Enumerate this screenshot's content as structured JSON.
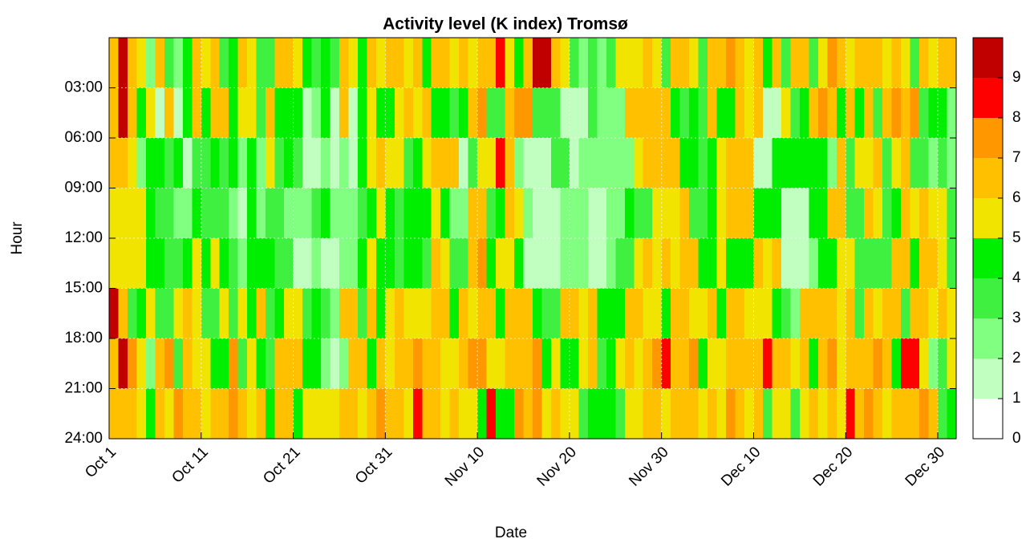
{
  "chart_data": {
    "type": "heatmap",
    "title": "Activity level (K index) Tromsø",
    "x_label": "Date",
    "y_label": "Hour",
    "xlim": [
      0,
      92
    ],
    "xticks": [
      {
        "value": 0,
        "label": "Oct 1"
      },
      {
        "value": 10,
        "label": "Oct 11"
      },
      {
        "value": 20,
        "label": "Oct 21"
      },
      {
        "value": 30,
        "label": "Oct 31"
      },
      {
        "value": 40,
        "label": "Nov 10"
      },
      {
        "value": 50,
        "label": "Nov 20"
      },
      {
        "value": 60,
        "label": "Nov 30"
      },
      {
        "value": 70,
        "label": "Dec 10"
      },
      {
        "value": 80,
        "label": "Dec 20"
      },
      {
        "value": 90,
        "label": "Dec 30"
      }
    ],
    "ylim": [
      0,
      24
    ],
    "yticks": [
      {
        "value": 3,
        "label": "03:00"
      },
      {
        "value": 6,
        "label": "06:00"
      },
      {
        "value": 9,
        "label": "09:00"
      },
      {
        "value": 12,
        "label": "12:00"
      },
      {
        "value": 15,
        "label": "15:00"
      },
      {
        "value": 18,
        "label": "18:00"
      },
      {
        "value": 21,
        "label": "21:00"
      },
      {
        "value": 24,
        "label": "24:00"
      }
    ],
    "zlim": [
      0,
      10
    ],
    "zticks": [
      0,
      1,
      2,
      3,
      4,
      5,
      6,
      7,
      8,
      9
    ],
    "colors": [
      "#ffffff",
      "#c0ffc0",
      "#80ff80",
      "#40f040",
      "#00ee00",
      "#f0e400",
      "#ffc000",
      "#ff9800",
      "#ff0000",
      "#c00000"
    ],
    "grid": true,
    "values": [
      [
        6,
        9,
        6,
        5,
        2,
        6,
        3,
        2,
        4,
        6,
        5,
        6,
        3,
        4,
        6,
        5,
        3,
        3,
        6,
        6,
        5,
        4,
        3,
        4,
        3,
        6,
        5,
        4,
        6,
        5,
        6,
        6,
        5,
        6,
        4,
        6,
        6,
        5,
        6,
        5,
        6,
        6,
        8,
        5,
        4,
        6,
        9,
        9,
        6,
        5,
        3,
        2,
        3,
        2,
        3,
        5,
        5,
        5,
        6,
        5,
        3,
        6,
        6,
        5,
        3,
        6,
        6,
        7,
        6,
        5,
        6,
        4,
        6,
        3,
        6,
        6,
        3,
        5,
        7,
        6,
        5,
        6,
        6,
        6,
        5,
        6,
        5,
        3,
        6,
        5,
        6,
        6
      ],
      [
        6,
        9,
        6,
        4,
        5,
        1,
        6,
        1,
        4,
        6,
        4,
        6,
        6,
        4,
        5,
        5,
        3,
        6,
        4,
        4,
        4,
        1,
        2,
        4,
        1,
        6,
        1,
        4,
        5,
        4,
        4,
        5,
        6,
        5,
        6,
        4,
        4,
        3,
        4,
        6,
        7,
        3,
        3,
        6,
        7,
        7,
        3,
        3,
        3,
        1,
        1,
        1,
        3,
        2,
        2,
        2,
        6,
        6,
        6,
        6,
        6,
        4,
        3,
        4,
        3,
        6,
        4,
        4,
        6,
        5,
        6,
        1,
        1,
        5,
        3,
        4,
        6,
        7,
        6,
        4,
        6,
        4,
        6,
        3,
        6,
        7,
        6,
        7,
        3,
        4,
        4,
        2
      ],
      [
        6,
        6,
        5,
        2,
        4,
        4,
        3,
        4,
        1,
        3,
        3,
        4,
        3,
        4,
        2,
        4,
        2,
        5,
        3,
        4,
        3,
        1,
        1,
        2,
        1,
        2,
        1,
        4,
        5,
        6,
        5,
        5,
        3,
        4,
        5,
        6,
        6,
        6,
        1,
        3,
        5,
        5,
        8,
        6,
        2,
        1,
        1,
        1,
        3,
        3,
        1,
        2,
        2,
        2,
        2,
        2,
        2,
        5,
        6,
        6,
        6,
        6,
        4,
        4,
        3,
        4,
        5,
        6,
        6,
        6,
        1,
        1,
        4,
        4,
        4,
        4,
        4,
        4,
        2,
        6,
        3,
        5,
        5,
        6,
        3,
        5,
        6,
        3,
        3,
        2,
        3,
        2
      ],
      [
        5,
        5,
        5,
        5,
        4,
        3,
        3,
        2,
        2,
        4,
        3,
        3,
        3,
        2,
        1,
        4,
        2,
        3,
        3,
        2,
        2,
        2,
        3,
        4,
        2,
        2,
        2,
        3,
        4,
        5,
        4,
        3,
        4,
        4,
        4,
        5,
        4,
        2,
        2,
        6,
        6,
        3,
        4,
        6,
        5,
        2,
        1,
        1,
        1,
        2,
        2,
        2,
        1,
        1,
        2,
        2,
        4,
        3,
        3,
        5,
        5,
        5,
        6,
        3,
        3,
        4,
        5,
        6,
        6,
        6,
        4,
        4,
        4,
        1,
        1,
        1,
        4,
        4,
        6,
        6,
        3,
        3,
        6,
        5,
        3,
        4,
        6,
        5,
        6,
        5,
        5,
        3
      ],
      [
        5,
        5,
        5,
        5,
        4,
        4,
        3,
        3,
        4,
        5,
        4,
        5,
        4,
        3,
        2,
        4,
        4,
        4,
        3,
        3,
        1,
        1,
        2,
        1,
        1,
        2,
        2,
        4,
        5,
        4,
        4,
        3,
        4,
        4,
        3,
        6,
        5,
        3,
        3,
        6,
        7,
        4,
        5,
        5,
        4,
        1,
        1,
        1,
        1,
        2,
        2,
        2,
        1,
        1,
        2,
        3,
        3,
        5,
        6,
        5,
        6,
        5,
        6,
        6,
        4,
        4,
        5,
        4,
        4,
        4,
        6,
        5,
        6,
        1,
        1,
        1,
        2,
        4,
        4,
        5,
        5,
        3,
        3,
        3,
        3,
        6,
        6,
        4,
        6,
        6,
        5,
        3
      ],
      [
        9,
        6,
        3,
        4,
        5,
        3,
        3,
        5,
        6,
        5,
        3,
        3,
        5,
        3,
        5,
        4,
        6,
        3,
        4,
        5,
        5,
        3,
        4,
        3,
        2,
        6,
        6,
        3,
        6,
        4,
        5,
        6,
        5,
        5,
        5,
        6,
        6,
        4,
        6,
        5,
        6,
        6,
        4,
        6,
        6,
        6,
        4,
        3,
        3,
        6,
        6,
        5,
        6,
        4,
        4,
        4,
        6,
        6,
        5,
        5,
        4,
        6,
        6,
        5,
        5,
        6,
        4,
        6,
        6,
        5,
        5,
        5,
        4,
        3,
        2,
        6,
        6,
        6,
        6,
        5,
        6,
        3,
        6,
        5,
        6,
        6,
        3,
        6,
        6,
        5,
        6,
        5
      ],
      [
        6,
        9,
        7,
        5,
        2,
        6,
        7,
        3,
        6,
        5,
        5,
        4,
        4,
        7,
        3,
        5,
        4,
        3,
        6,
        6,
        6,
        4,
        4,
        2,
        1,
        2,
        6,
        6,
        4,
        6,
        5,
        6,
        6,
        7,
        6,
        6,
        5,
        5,
        6,
        7,
        7,
        5,
        5,
        6,
        6,
        6,
        7,
        4,
        5,
        4,
        4,
        5,
        6,
        3,
        4,
        5,
        6,
        5,
        6,
        7,
        8,
        6,
        6,
        7,
        4,
        5,
        5,
        6,
        6,
        6,
        6,
        8,
        6,
        6,
        5,
        6,
        4,
        6,
        7,
        5,
        6,
        6,
        6,
        7,
        6,
        4,
        8,
        8,
        5,
        2,
        3,
        5
      ],
      [
        6,
        6,
        6,
        5,
        4,
        6,
        5,
        7,
        6,
        6,
        5,
        6,
        6,
        7,
        6,
        5,
        6,
        4,
        6,
        6,
        4,
        5,
        5,
        5,
        5,
        6,
        6,
        5,
        6,
        7,
        6,
        6,
        5,
        8,
        6,
        6,
        5,
        6,
        5,
        5,
        4,
        8,
        4,
        4,
        7,
        6,
        7,
        5,
        6,
        5,
        5,
        3,
        4,
        4,
        4,
        3,
        5,
        5,
        6,
        6,
        5,
        6,
        6,
        6,
        5,
        6,
        5,
        7,
        6,
        5,
        6,
        3,
        5,
        5,
        3,
        5,
        6,
        5,
        6,
        5,
        8,
        6,
        7,
        6,
        5,
        6,
        6,
        6,
        7,
        6,
        3,
        4
      ]
    ]
  }
}
